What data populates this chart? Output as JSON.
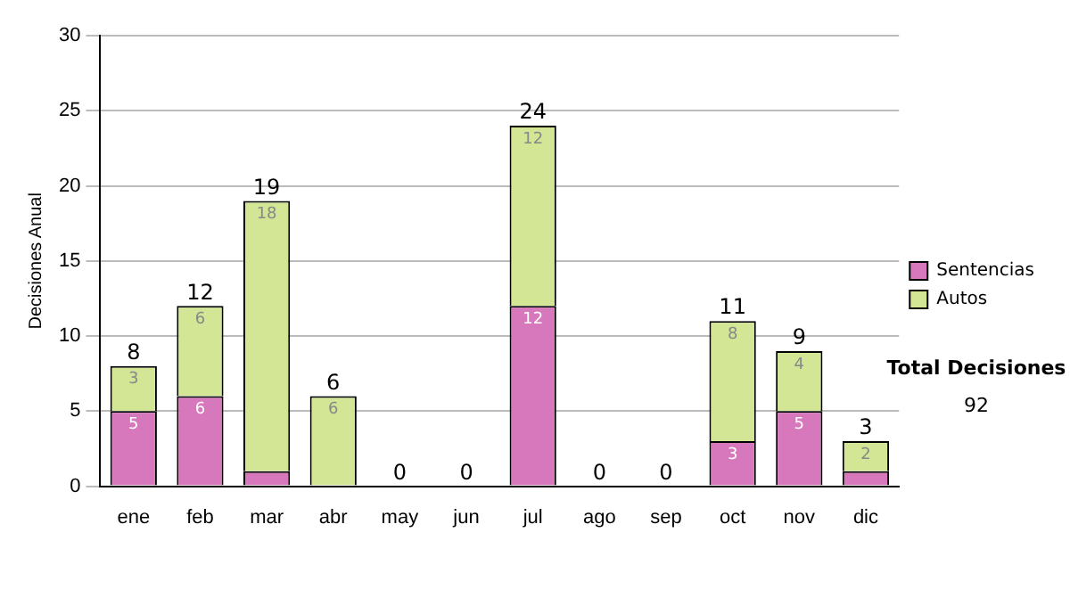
{
  "chart_data": {
    "type": "bar",
    "stacked": true,
    "ylabel": "Decisiones Anual",
    "categories": [
      "ene",
      "feb",
      "mar",
      "abr",
      "may",
      "jun",
      "jul",
      "ago",
      "sep",
      "oct",
      "nov",
      "dic"
    ],
    "series": [
      {
        "name": "Sentencias",
        "color": "#d878bc",
        "values": [
          5,
          6,
          1,
          0,
          0,
          0,
          12,
          0,
          0,
          3,
          5,
          1
        ],
        "value_labels": [
          "5",
          "6",
          null,
          null,
          null,
          null,
          "12",
          null,
          null,
          "3",
          "5",
          null
        ]
      },
      {
        "name": "Autos",
        "color": "#d2e696",
        "values": [
          3,
          6,
          18,
          6,
          0,
          0,
          12,
          0,
          0,
          8,
          4,
          2
        ],
        "value_labels": [
          "3",
          "6",
          "18",
          "6",
          null,
          null,
          "12",
          null,
          null,
          "8",
          "4",
          "2"
        ]
      }
    ],
    "totals": [
      "8",
      "12",
      "19",
      "6",
      "0",
      "0",
      "24",
      "0",
      "0",
      "11",
      "9",
      "3"
    ],
    "ylim": [
      0,
      30
    ],
    "yticks": [
      0,
      5,
      10,
      15,
      20,
      25,
      30
    ],
    "grid": "y",
    "legend": "right",
    "annotations": [
      "Total Decisiones",
      "92"
    ]
  }
}
